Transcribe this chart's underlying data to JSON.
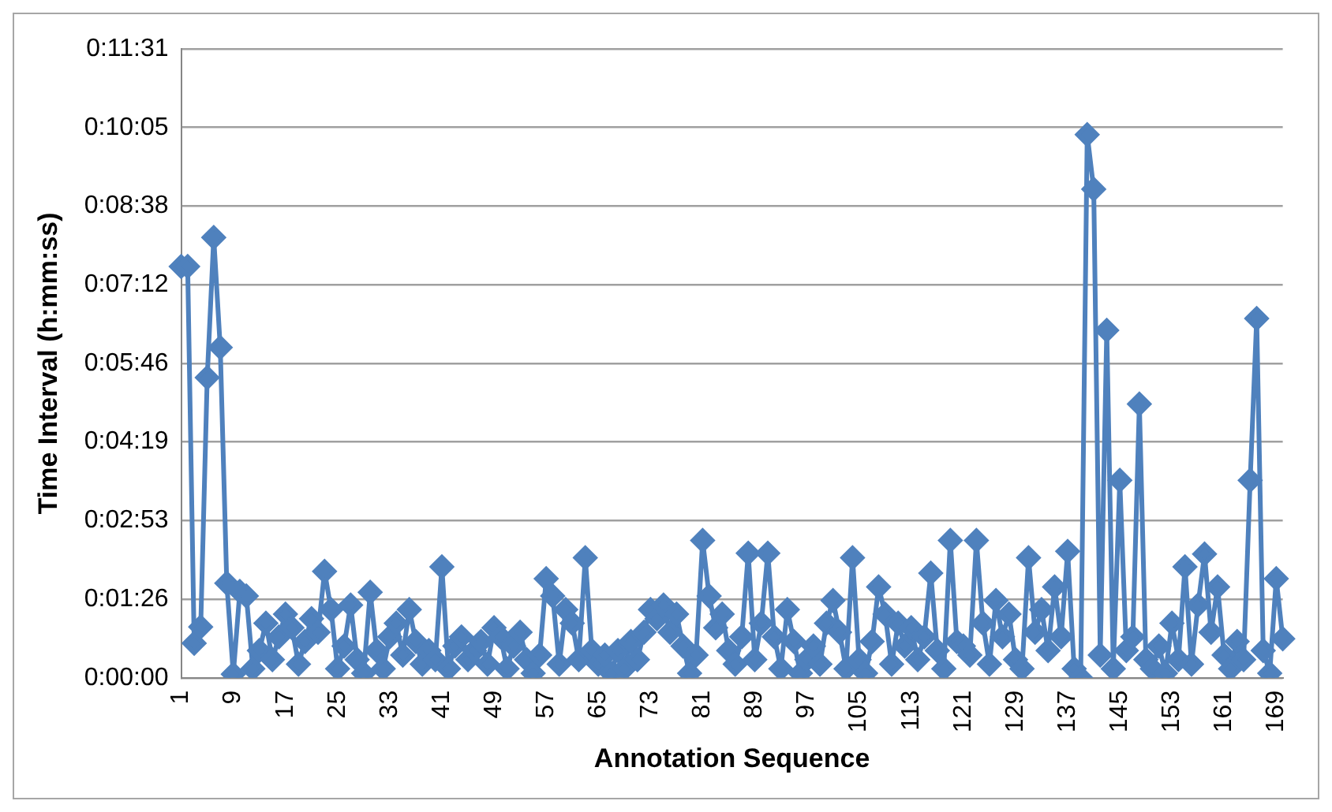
{
  "chart_data": {
    "type": "line",
    "xlabel": "Annotation Sequence",
    "ylabel": "Time Interval (h:mm:ss)",
    "categories": [
      "1",
      null,
      null,
      null,
      null,
      null,
      null,
      null,
      "9",
      null,
      null,
      null,
      null,
      null,
      null,
      null,
      "17",
      null,
      null,
      null,
      null,
      null,
      null,
      null,
      "25",
      null,
      null,
      null,
      null,
      null,
      null,
      null,
      "33",
      null,
      null,
      null,
      null,
      null,
      null,
      null,
      "41",
      null,
      null,
      null,
      null,
      null,
      null,
      null,
      "49",
      null,
      null,
      null,
      null,
      null,
      null,
      null,
      "57",
      null,
      null,
      null,
      null,
      null,
      null,
      null,
      "65",
      null,
      null,
      null,
      null,
      null,
      null,
      null,
      "73",
      null,
      null,
      null,
      null,
      null,
      null,
      null,
      "81",
      null,
      null,
      null,
      null,
      null,
      null,
      null,
      "89",
      null,
      null,
      null,
      null,
      null,
      null,
      null,
      "97",
      null,
      null,
      null,
      null,
      null,
      null,
      null,
      "105",
      null,
      null,
      null,
      null,
      null,
      null,
      null,
      "113",
      null,
      null,
      null,
      null,
      null,
      null,
      null,
      "121",
      null,
      null,
      null,
      null,
      null,
      null,
      null,
      "129",
      null,
      null,
      null,
      null,
      null,
      null,
      null,
      "137",
      null,
      null,
      null,
      null,
      null,
      null,
      null,
      "145",
      null,
      null,
      null,
      null,
      null,
      null,
      null,
      "153",
      null,
      null,
      null,
      null,
      null,
      null,
      null,
      "161",
      null,
      null,
      null,
      null,
      null,
      null,
      null,
      "169",
      null
    ],
    "series": [
      {
        "color": "#4f81bd",
        "values": [
          452,
          452,
          38,
          56,
          330,
          484,
          363,
          104,
          4,
          95,
          90,
          10,
          30,
          60,
          20,
          45,
          70,
          55,
          15,
          40,
          65,
          50,
          117,
          75,
          10,
          35,
          80,
          20,
          5,
          94,
          30,
          10,
          45,
          60,
          25,
          75,
          40,
          15,
          30,
          20,
          122,
          10,
          35,
          45,
          20,
          30,
          40,
          15,
          55,
          45,
          10,
          35,
          50,
          20,
          5,
          25,
          109,
          90,
          15,
          75,
          60,
          20,
          132,
          30,
          15,
          25,
          5,
          30,
          10,
          40,
          20,
          50,
          75,
          65,
          80,
          50,
          70,
          35,
          5,
          25,
          151,
          90,
          55,
          70,
          30,
          15,
          45,
          137,
          20,
          60,
          137,
          45,
          10,
          75,
          40,
          5,
          20,
          35,
          15,
          60,
          85,
          50,
          10,
          132,
          20,
          5,
          40,
          100,
          70,
          15,
          60,
          35,
          55,
          20,
          45,
          115,
          30,
          10,
          151,
          40,
          35,
          25,
          151,
          60,
          15,
          85,
          45,
          70,
          20,
          10,
          132,
          50,
          75,
          30,
          100,
          45,
          139,
          10,
          0,
          597,
          537,
          25,
          382,
          10,
          217,
          30,
          45,
          301,
          20,
          10,
          35,
          5,
          60,
          20,
          122,
          15,
          80,
          136,
          50,
          100,
          25,
          10,
          40,
          20,
          217,
          395,
          30,
          5,
          109,
          43
        ]
      }
    ],
    "ylim": [
      0,
      691.2
    ],
    "yticks": [
      {
        "value": 0,
        "label": "0:00:00"
      },
      {
        "value": 86.4,
        "label": "0:01:26"
      },
      {
        "value": 172.8,
        "label": "0:02:53"
      },
      {
        "value": 259.2,
        "label": "0:04:19"
      },
      {
        "value": 345.6,
        "label": "0:05:46"
      },
      {
        "value": 432,
        "label": "0:07:12"
      },
      {
        "value": 518.4,
        "label": "0:08:38"
      },
      {
        "value": 604.8,
        "label": "0:10:05"
      },
      {
        "value": 691.2,
        "label": "0:11:31"
      }
    ],
    "grid": "y",
    "legend": false,
    "marker": "diamond",
    "line_style": "solid"
  }
}
